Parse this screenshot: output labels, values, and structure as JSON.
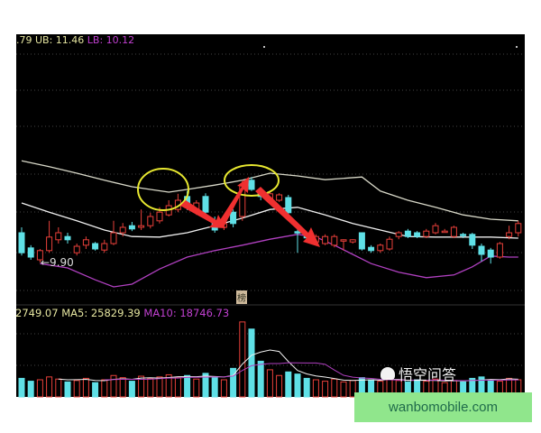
{
  "header": {
    "mid_partial": ".79",
    "ub_label": "UB: 11.46",
    "lb_label": "LB: 10.12"
  },
  "volume_header": {
    "vol_partial": "2749.07",
    "ma5_label": "MA5: 25829.39",
    "ma10_label": "MA10: 18746.73"
  },
  "low_marker": "←9.90",
  "badge_char": "榜",
  "watermark": "悟空问答",
  "banner_text": "wanbomobile.com",
  "colors": {
    "background": "#000000",
    "up": "#e8403a",
    "down": "#5fe0e6",
    "upper_band": "#d8d8c8",
    "mid_band": "#f0f0f0",
    "lower_band": "#b040c0",
    "ub_text": "#e6e6a0",
    "lb_text": "#c040d0",
    "annotation_circle": "#e8e830",
    "annotation_arrow": "#f03030",
    "banner": "#90e68c"
  },
  "chart_data": {
    "type": "candlestick",
    "price_axis": {
      "ylim": [
        9.3,
        12.1
      ]
    },
    "candles_ohlc": [
      [
        10.45,
        10.55,
        10.03,
        10.08
      ],
      [
        10.17,
        10.22,
        9.95,
        10.0
      ],
      [
        9.95,
        10.15,
        9.9,
        10.12
      ],
      [
        10.12,
        10.67,
        10.08,
        10.37
      ],
      [
        10.32,
        10.55,
        10.25,
        10.45
      ],
      [
        10.38,
        10.45,
        10.25,
        10.32
      ],
      [
        10.08,
        10.25,
        10.03,
        10.2
      ],
      [
        10.22,
        10.38,
        10.15,
        10.32
      ],
      [
        10.25,
        10.28,
        10.12,
        10.15
      ],
      [
        10.13,
        10.32,
        10.08,
        10.25
      ],
      [
        10.25,
        10.67,
        10.22,
        10.45
      ],
      [
        10.45,
        10.63,
        10.38,
        10.55
      ],
      [
        10.58,
        10.65,
        10.48,
        10.52
      ],
      [
        10.55,
        10.88,
        10.5,
        10.58
      ],
      [
        10.58,
        10.82,
        10.53,
        10.75
      ],
      [
        10.67,
        10.92,
        10.62,
        10.83
      ],
      [
        10.78,
        11.05,
        10.75,
        10.95
      ],
      [
        10.88,
        11.17,
        10.83,
        11.05
      ],
      [
        11.12,
        11.22,
        10.87,
        10.92
      ],
      [
        10.83,
        11.05,
        10.78,
        11.0
      ],
      [
        11.12,
        11.18,
        10.72,
        10.83
      ],
      [
        10.67,
        10.75,
        10.45,
        10.5
      ],
      [
        10.55,
        10.67,
        10.5,
        10.62
      ],
      [
        10.83,
        10.88,
        10.55,
        10.62
      ],
      [
        10.75,
        11.42,
        10.67,
        11.33
      ],
      [
        11.42,
        11.48,
        11.22,
        11.25
      ],
      [
        11.22,
        11.28,
        11.05,
        11.12
      ],
      [
        11.08,
        11.22,
        11.03,
        11.17
      ],
      [
        11.05,
        11.18,
        11.02,
        11.15
      ],
      [
        11.1,
        11.15,
        10.77,
        10.82
      ],
      [
        10.47,
        10.58,
        10.08,
        10.45
      ],
      [
        10.38,
        10.45,
        10.28,
        10.37
      ],
      [
        10.28,
        10.42,
        10.25,
        10.38
      ],
      [
        10.25,
        10.42,
        10.22,
        10.38
      ],
      [
        10.22,
        10.42,
        10.18,
        10.38
      ],
      [
        10.32,
        10.33,
        10.12,
        10.32
      ],
      [
        10.28,
        10.33,
        10.25,
        10.32
      ],
      [
        10.45,
        10.45,
        10.12,
        10.15
      ],
      [
        10.18,
        10.22,
        10.08,
        10.12
      ],
      [
        10.12,
        10.25,
        10.08,
        10.22
      ],
      [
        10.15,
        10.38,
        10.12,
        10.33
      ],
      [
        10.38,
        10.48,
        10.33,
        10.45
      ],
      [
        10.48,
        10.52,
        10.35,
        10.38
      ],
      [
        10.45,
        10.48,
        10.35,
        10.38
      ],
      [
        10.38,
        10.52,
        10.35,
        10.48
      ],
      [
        10.45,
        10.63,
        10.42,
        10.58
      ],
      [
        10.48,
        10.52,
        10.45,
        10.48
      ],
      [
        10.38,
        10.58,
        10.35,
        10.55
      ],
      [
        10.42,
        10.45,
        10.35,
        10.4
      ],
      [
        10.42,
        10.45,
        10.15,
        10.22
      ],
      [
        10.2,
        10.25,
        9.92,
        10.05
      ],
      [
        10.13,
        10.17,
        9.88,
        10.0
      ],
      [
        10.0,
        10.28,
        9.97,
        10.25
      ],
      [
        10.38,
        10.58,
        10.33,
        10.45
      ],
      [
        10.45,
        10.67,
        10.38,
        10.62
      ]
    ],
    "upper_band": [
      [
        0,
        11.78
      ],
      [
        3,
        11.67
      ],
      [
        6,
        11.55
      ],
      [
        9,
        11.42
      ],
      [
        12,
        11.3
      ],
      [
        16,
        11.2
      ],
      [
        18,
        11.25
      ],
      [
        21,
        11.33
      ],
      [
        24,
        11.42
      ],
      [
        27,
        11.55
      ],
      [
        30,
        11.5
      ],
      [
        33,
        11.43
      ],
      [
        37,
        11.48
      ],
      [
        39,
        11.22
      ],
      [
        42,
        11.05
      ],
      [
        45,
        10.92
      ],
      [
        48,
        10.78
      ],
      [
        51,
        10.7
      ],
      [
        54,
        10.67
      ]
    ],
    "mid_band": [
      [
        0,
        11.0
      ],
      [
        3,
        10.83
      ],
      [
        6,
        10.67
      ],
      [
        9,
        10.5
      ],
      [
        12,
        10.38
      ],
      [
        15,
        10.37
      ],
      [
        18,
        10.45
      ],
      [
        21,
        10.58
      ],
      [
        24,
        10.72
      ],
      [
        27,
        10.88
      ],
      [
        30,
        10.92
      ],
      [
        33,
        10.78
      ],
      [
        36,
        10.62
      ],
      [
        39,
        10.5
      ],
      [
        42,
        10.38
      ],
      [
        45,
        10.37
      ],
      [
        48,
        10.37
      ],
      [
        51,
        10.37
      ],
      [
        54,
        10.35
      ]
    ],
    "lower_band": [
      [
        2,
        9.88
      ],
      [
        5,
        9.8
      ],
      [
        8,
        9.58
      ],
      [
        10,
        9.45
      ],
      [
        12,
        9.5
      ],
      [
        15,
        9.78
      ],
      [
        18,
        10.0
      ],
      [
        21,
        10.12
      ],
      [
        24,
        10.22
      ],
      [
        27,
        10.33
      ],
      [
        30,
        10.42
      ],
      [
        32,
        10.37
      ],
      [
        34,
        10.22
      ],
      [
        36,
        10.05
      ],
      [
        38,
        9.88
      ],
      [
        41,
        9.72
      ],
      [
        44,
        9.62
      ],
      [
        47,
        9.67
      ],
      [
        49,
        9.82
      ],
      [
        51,
        10.02
      ],
      [
        53,
        10.0
      ],
      [
        54,
        10.0
      ]
    ],
    "volume": {
      "ylim": [
        0,
        120000
      ],
      "values": [
        26000,
        22000,
        24000,
        28000,
        25000,
        21000,
        23000,
        26000,
        20000,
        24000,
        30000,
        27000,
        22000,
        29000,
        26000,
        28000,
        31000,
        27000,
        30000,
        25000,
        33000,
        28000,
        24000,
        40000,
        105000,
        95000,
        50000,
        38000,
        30000,
        35000,
        32000,
        26000,
        24000,
        22000,
        25000,
        21000,
        23000,
        27000,
        24000,
        22000,
        26000,
        23000,
        21000,
        24000,
        22000,
        25000,
        20000,
        23000,
        21000,
        26000,
        28000,
        24000,
        22000,
        26000,
        24000
      ]
    }
  }
}
